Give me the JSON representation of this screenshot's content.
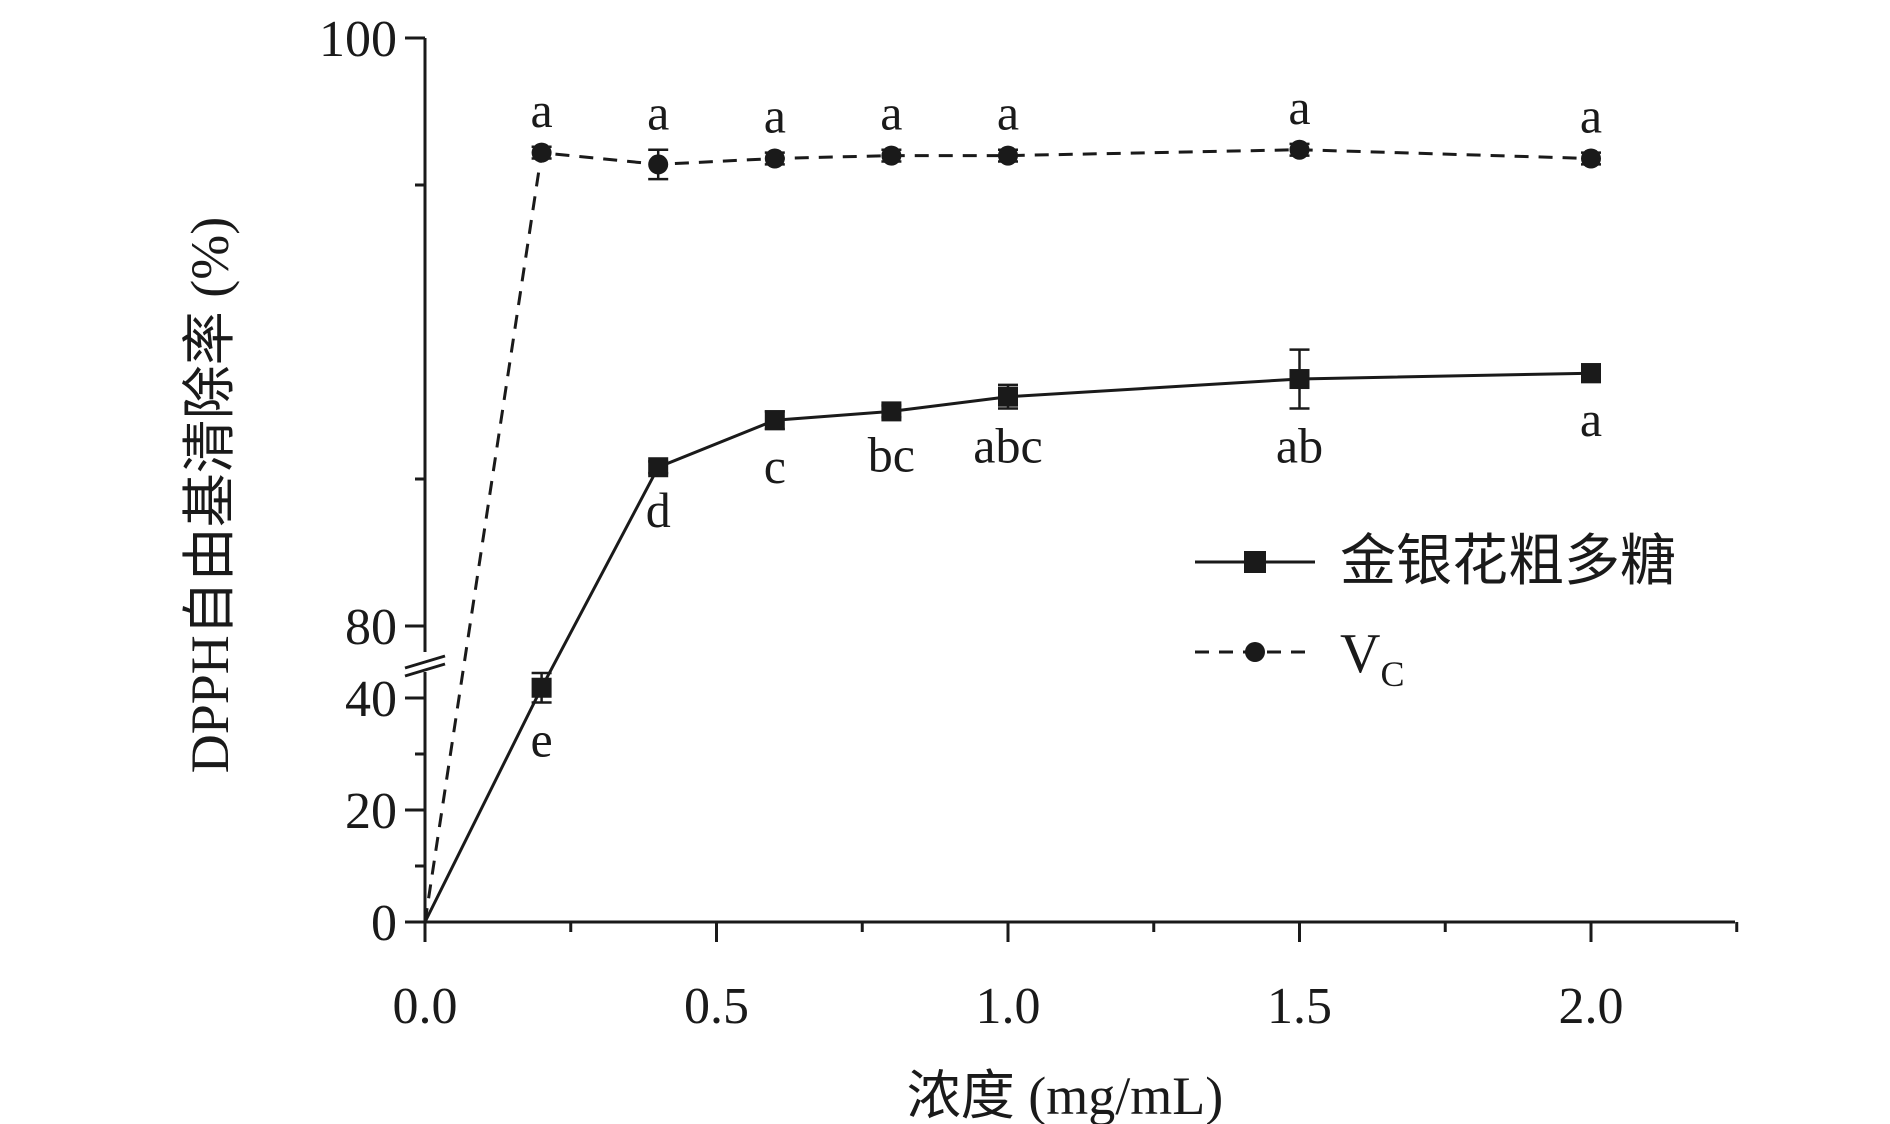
{
  "chart_data": {
    "type": "line",
    "title": "",
    "xlabel": "浓度 (mg/mL)",
    "ylabel": "DPPH自由基清除率 (%)",
    "xlim": [
      0,
      2.25
    ],
    "x_ticks": [
      "0.0",
      "0.5",
      "1.0",
      "1.5",
      "2.0"
    ],
    "y_ticks": [
      "0",
      "20",
      "40",
      "80",
      "100"
    ],
    "y_axis_break": [
      45,
      75
    ],
    "grid": false,
    "legend_position": "center-right",
    "series": [
      {
        "name": "金银花粗多糖",
        "line_style": "solid",
        "marker": "square",
        "color": "#1a1a1a",
        "x": [
          0,
          0.2,
          0.4,
          0.6,
          0.8,
          1.0,
          1.5,
          2.0
        ],
        "y": [
          0,
          77.9,
          85.4,
          87.0,
          87.3,
          87.8,
          88.4,
          88.6
        ],
        "error": [
          0,
          0.5,
          0.2,
          0.3,
          0.2,
          0.4,
          1.0,
          0.3
        ],
        "labels": [
          "",
          "e",
          "d",
          "c",
          "bc",
          "abc",
          "ab",
          "a"
        ]
      },
      {
        "name": "V",
        "name_sub": "C",
        "line_style": "dashed",
        "marker": "circle",
        "color": "#1a1a1a",
        "x": [
          0,
          0.2,
          0.4,
          0.6,
          0.8,
          1.0,
          1.5,
          2.0
        ],
        "y": [
          0,
          96.1,
          95.7,
          95.9,
          96.0,
          96.0,
          96.2,
          95.9
        ],
        "error": [
          0,
          0.2,
          0.5,
          0.2,
          0.2,
          0.2,
          0.2,
          0.2
        ],
        "labels": [
          "",
          "a",
          "a",
          "a",
          "a",
          "a",
          "a",
          "a"
        ]
      }
    ]
  }
}
